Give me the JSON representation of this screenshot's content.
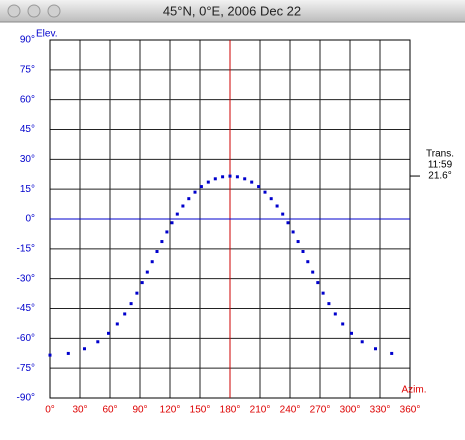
{
  "window": {
    "title": "45°N, 0°E, 2006 Dec 22"
  },
  "chart_data": {
    "type": "scatter",
    "xlabel": "Azim.",
    "ylabel": "Elev.",
    "xlim": [
      0,
      360
    ],
    "ylim": [
      -90,
      90
    ],
    "xticks": [
      {
        "value": 0,
        "label": "0°"
      },
      {
        "value": 30,
        "label": "30°"
      },
      {
        "value": 60,
        "label": "60°"
      },
      {
        "value": 90,
        "label": "90°"
      },
      {
        "value": 120,
        "label": "120°"
      },
      {
        "value": 150,
        "label": "150°"
      },
      {
        "value": 180,
        "label": "180°"
      },
      {
        "value": 210,
        "label": "210°"
      },
      {
        "value": 240,
        "label": "240°"
      },
      {
        "value": 270,
        "label": "270°"
      },
      {
        "value": 300,
        "label": "300°"
      },
      {
        "value": 330,
        "label": "330°"
      },
      {
        "value": 360,
        "label": "360°"
      }
    ],
    "yticks": [
      {
        "value": 90,
        "label": "90°"
      },
      {
        "value": 75,
        "label": "75°"
      },
      {
        "value": 60,
        "label": "60°"
      },
      {
        "value": 45,
        "label": "45°"
      },
      {
        "value": 30,
        "label": "30°"
      },
      {
        "value": 15,
        "label": "15°"
      },
      {
        "value": 0,
        "label": "0°"
      },
      {
        "value": -15,
        "label": "-15°"
      },
      {
        "value": -30,
        "label": "-30°"
      },
      {
        "value": -45,
        "label": "-45°"
      },
      {
        "value": -60,
        "label": "-60°"
      },
      {
        "value": -75,
        "label": "-75°"
      },
      {
        "value": -90,
        "label": "-90°"
      }
    ],
    "grid": true,
    "xaxis_color": "#dd0000",
    "yaxis_color": "#0000cc",
    "color": "#0000cc",
    "vline": {
      "value": 180,
      "color": "#cc0000"
    },
    "hline": {
      "value": 0,
      "color": "#0000cc"
    },
    "x": [
      0,
      18.3,
      34.5,
      47.8,
      58.5,
      67.3,
      74.7,
      81.1,
      86.9,
      92.2,
      97.3,
      102.2,
      107.0,
      111.9,
      116.9,
      122.0,
      127.3,
      132.9,
      138.8,
      145.0,
      151.4,
      158.3,
      165.3,
      172.6,
      180,
      187.4,
      194.7,
      201.7,
      208.6,
      215.0,
      221.2,
      227.1,
      232.7,
      238.0,
      243.1,
      248.1,
      253.0,
      257.8,
      262.7,
      267.8,
      273.1,
      278.9,
      285.3,
      292.7,
      301.5,
      312.2,
      325.5,
      341.7
    ],
    "y": [
      -68.44,
      -67.59,
      -65.24,
      -61.73,
      -57.48,
      -52.77,
      -47.74,
      -42.55,
      -37.28,
      -31.98,
      -26.69,
      -21.47,
      -16.34,
      -11.34,
      -6.51,
      -1.89,
      2.47,
      6.53,
      10.22,
      13.5,
      16.3,
      18.55,
      20.21,
      21.22,
      21.56,
      21.22,
      20.21,
      18.55,
      16.3,
      13.5,
      10.22,
      6.53,
      2.47,
      -1.89,
      -6.51,
      -11.34,
      -16.34,
      -21.47,
      -26.69,
      -31.98,
      -37.28,
      -42.55,
      -47.74,
      -52.77,
      -57.48,
      -61.73,
      -65.24,
      -67.59
    ],
    "transit": {
      "label": "Trans.",
      "time": "11:59",
      "elevation": 21.6,
      "elevation_label": "21.6°"
    }
  }
}
